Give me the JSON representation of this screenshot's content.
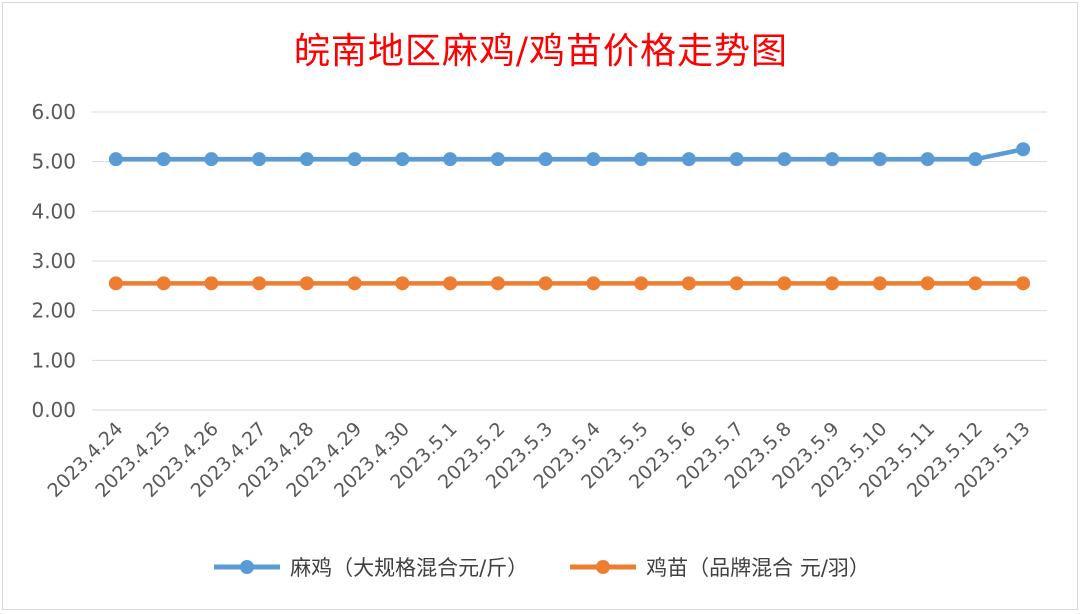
{
  "chart_data": {
    "type": "line",
    "title": "皖南地区麻鸡/鸡苗价格走势图",
    "categories": [
      "2023.4.24",
      "2023.4.25",
      "2023.4.26",
      "2023.4.27",
      "2023.4.28",
      "2023.4.29",
      "2023.4.30",
      "2023.5.1",
      "2023.5.2",
      "2023.5.3",
      "2023.5.4",
      "2023.5.5",
      "2023.5.6",
      "2023.5.7",
      "2023.5.8",
      "2023.5.9",
      "2023.5.10",
      "2023.5.11",
      "2023.5.12",
      "2023.5.13"
    ],
    "series": [
      {
        "name": "麻鸡（大规格混合元/斤）",
        "color": "#5b9bd5",
        "values": [
          5.05,
          5.05,
          5.05,
          5.05,
          5.05,
          5.05,
          5.05,
          5.05,
          5.05,
          5.05,
          5.05,
          5.05,
          5.05,
          5.05,
          5.05,
          5.05,
          5.05,
          5.05,
          5.05,
          5.25
        ]
      },
      {
        "name": "鸡苗（品牌混合 元/羽）",
        "color": "#ed7d31",
        "values": [
          2.55,
          2.55,
          2.55,
          2.55,
          2.55,
          2.55,
          2.55,
          2.55,
          2.55,
          2.55,
          2.55,
          2.55,
          2.55,
          2.55,
          2.55,
          2.55,
          2.55,
          2.55,
          2.55,
          2.55
        ]
      }
    ],
    "yticks": [
      "0.00",
      "1.00",
      "2.00",
      "3.00",
      "4.00",
      "5.00",
      "6.00"
    ],
    "ylim": [
      0,
      6
    ],
    "grid": true,
    "legend": "bottom",
    "title_color": "#ff0000"
  }
}
